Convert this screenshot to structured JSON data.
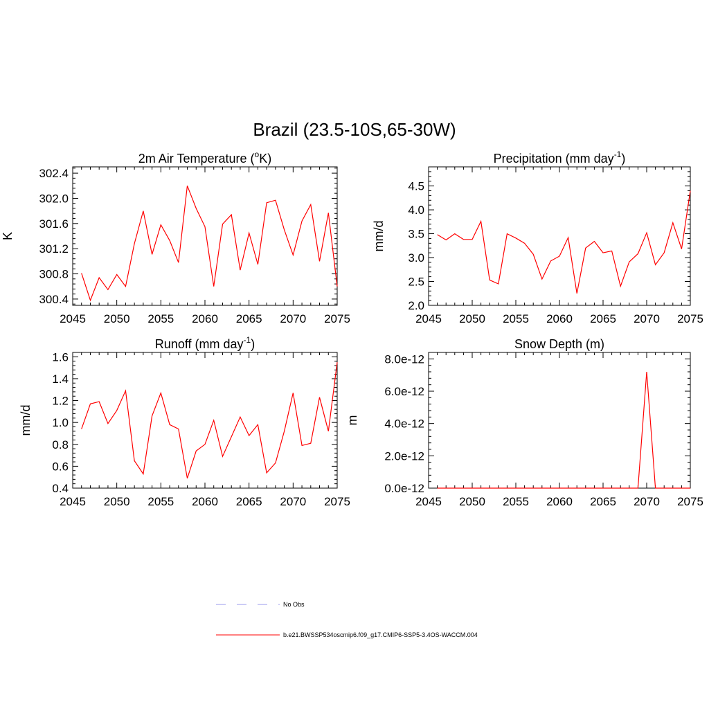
{
  "figure": {
    "title": "Brazil (23.5-10S,65-30W)"
  },
  "chart_data": [
    {
      "type": "line",
      "title": "2m Air Temperature (°K)",
      "title_parts": [
        "2m Air Temperature (",
        "o",
        "K)"
      ],
      "xlabel": "",
      "ylabel": "K",
      "xlim": [
        2045,
        2075
      ],
      "ylim": [
        300.3,
        302.5
      ],
      "xticks": [
        2045,
        2050,
        2055,
        2060,
        2065,
        2070,
        2075
      ],
      "yticks": [
        300.4,
        300.8,
        301.2,
        301.6,
        302.0,
        302.4
      ],
      "ytick_labels": [
        "300.4",
        "300.8",
        "301.2",
        "301.6",
        "302.0",
        "302.4"
      ],
      "color": "#ff0000",
      "x": [
        2046,
        2047,
        2048,
        2049,
        2050,
        2051,
        2052,
        2053,
        2054,
        2055,
        2056,
        2057,
        2058,
        2059,
        2060,
        2061,
        2062,
        2063,
        2064,
        2065,
        2066,
        2067,
        2068,
        2069,
        2070,
        2071,
        2072,
        2073,
        2074,
        2075
      ],
      "values": [
        300.81,
        300.38,
        300.74,
        300.55,
        300.79,
        300.6,
        301.28,
        301.8,
        301.11,
        301.58,
        301.33,
        300.98,
        302.2,
        301.84,
        301.55,
        300.6,
        301.59,
        301.74,
        300.86,
        301.45,
        300.95,
        301.93,
        301.97,
        301.5,
        301.1,
        301.64,
        301.9,
        301.0,
        301.77,
        300.6
      ]
    },
    {
      "type": "line",
      "title": "Precipitation (mm day-1)",
      "title_parts": [
        "Precipitation (mm day",
        "-1",
        ")"
      ],
      "xlabel": "",
      "ylabel": "mm/d",
      "xlim": [
        2045,
        2075
      ],
      "ylim": [
        2.0,
        4.9
      ],
      "xticks": [
        2045,
        2050,
        2055,
        2060,
        2065,
        2070,
        2075
      ],
      "yticks": [
        2.0,
        2.5,
        3.0,
        3.5,
        4.0,
        4.5
      ],
      "ytick_labels": [
        "2.0",
        "2.5",
        "3.0",
        "3.5",
        "4.0",
        "4.5"
      ],
      "color": "#ff0000",
      "x": [
        2046,
        2047,
        2048,
        2049,
        2050,
        2051,
        2052,
        2053,
        2054,
        2055,
        2056,
        2057,
        2058,
        2059,
        2060,
        2061,
        2062,
        2063,
        2064,
        2065,
        2066,
        2067,
        2068,
        2069,
        2070,
        2071,
        2072,
        2073,
        2074,
        2075
      ],
      "values": [
        3.48,
        3.37,
        3.5,
        3.38,
        3.38,
        3.76,
        2.53,
        2.45,
        3.5,
        3.41,
        3.3,
        3.07,
        2.55,
        2.93,
        3.03,
        3.42,
        2.25,
        3.2,
        3.34,
        3.1,
        3.14,
        2.4,
        2.91,
        3.08,
        3.52,
        2.85,
        3.1,
        3.73,
        3.18,
        4.4
      ]
    },
    {
      "type": "line",
      "title": "Runoff (mm day-1)",
      "title_parts": [
        "Runoff (mm day",
        "-1",
        ")"
      ],
      "xlabel": "",
      "ylabel": "mm/d",
      "xlim": [
        2045,
        2075
      ],
      "ylim": [
        0.4,
        1.64
      ],
      "xticks": [
        2045,
        2050,
        2055,
        2060,
        2065,
        2070,
        2075
      ],
      "yticks": [
        0.4,
        0.6,
        0.8,
        1.0,
        1.2,
        1.4,
        1.6
      ],
      "ytick_labels": [
        "0.4",
        "0.6",
        "0.8",
        "1.0",
        "1.2",
        "1.4",
        "1.6"
      ],
      "color": "#ff0000",
      "x": [
        2046,
        2047,
        2048,
        2049,
        2050,
        2051,
        2052,
        2053,
        2054,
        2055,
        2056,
        2057,
        2058,
        2059,
        2060,
        2061,
        2062,
        2063,
        2064,
        2065,
        2066,
        2067,
        2068,
        2069,
        2070,
        2071,
        2072,
        2073,
        2074,
        2075
      ],
      "values": [
        0.94,
        1.17,
        1.19,
        0.99,
        1.11,
        1.29,
        0.65,
        0.53,
        1.06,
        1.27,
        0.98,
        0.94,
        0.49,
        0.74,
        0.8,
        1.02,
        0.69,
        0.87,
        1.05,
        0.88,
        0.98,
        0.54,
        0.63,
        0.92,
        1.27,
        0.79,
        0.81,
        1.23,
        0.92,
        1.55
      ]
    },
    {
      "type": "line",
      "title": "Snow Depth (m)",
      "title_parts": [
        "Snow Depth (m)",
        "",
        ""
      ],
      "xlabel": "",
      "ylabel": "m",
      "xlim": [
        2045,
        2075
      ],
      "ylim": [
        0,
        8.4e-12
      ],
      "xticks": [
        2045,
        2050,
        2055,
        2060,
        2065,
        2070,
        2075
      ],
      "yticks": [
        0,
        2e-12,
        4e-12,
        6e-12,
        8e-12
      ],
      "ytick_labels": [
        "0.0e-12",
        "2.0e-12",
        "4.0e-12",
        "6.0e-12",
        "8.0e-12"
      ],
      "color": "#ff0000",
      "x": [
        2046,
        2047,
        2048,
        2049,
        2050,
        2051,
        2052,
        2053,
        2054,
        2055,
        2056,
        2057,
        2058,
        2059,
        2060,
        2061,
        2062,
        2063,
        2064,
        2065,
        2066,
        2067,
        2068,
        2069,
        2070,
        2071,
        2072,
        2073,
        2074,
        2075
      ],
      "values": [
        0,
        0,
        0,
        0,
        0,
        0,
        0,
        0,
        0,
        0,
        0,
        0,
        0,
        0,
        0,
        0,
        0,
        0,
        0,
        0,
        0,
        0,
        0,
        0,
        7.2e-12,
        0,
        0,
        0,
        0,
        0
      ]
    }
  ],
  "legend": [
    {
      "label": "No Obs",
      "color": "#9999ee",
      "style": "dashed"
    },
    {
      "label": "b.e21.BWSSP534oscmip6.f09_g17.CMIP6-SSP5-3.4OS-WACCM.004",
      "color": "#ff0000",
      "style": "solid"
    }
  ]
}
